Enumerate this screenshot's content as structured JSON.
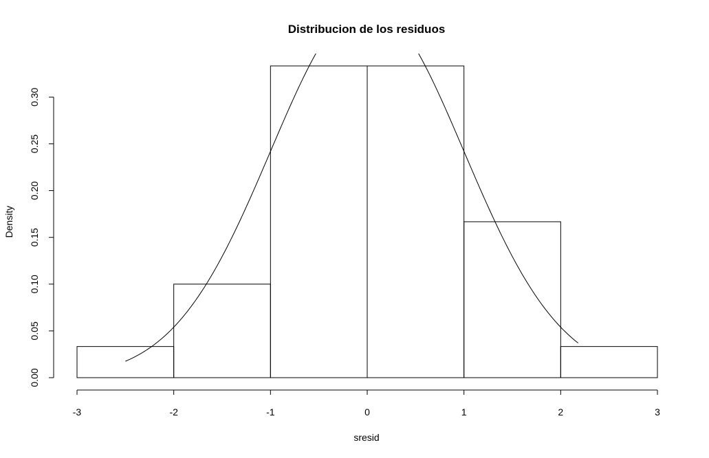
{
  "chart_data": {
    "type": "bar",
    "subtype": "histogram with normal density curve",
    "title": "Distribucion de los residuos",
    "xlabel": "sresid",
    "ylabel": "Density",
    "xlim": [
      -3,
      3
    ],
    "ylim": [
      0,
      0.3333
    ],
    "x_ticks": [
      "-3",
      "-2",
      "-1",
      "0",
      "1",
      "2",
      "3"
    ],
    "y_ticks": [
      "0.00",
      "0.05",
      "0.10",
      "0.15",
      "0.20",
      "0.25",
      "0.30"
    ],
    "bins": [
      {
        "start": -3,
        "end": -2,
        "density": 0.0333
      },
      {
        "start": -2,
        "end": -1,
        "density": 0.1
      },
      {
        "start": -1,
        "end": 0,
        "density": 0.3333
      },
      {
        "start": 0,
        "end": 1,
        "density": 0.3333
      },
      {
        "start": 1,
        "end": 2,
        "density": 0.1667
      },
      {
        "start": 2,
        "end": 3,
        "density": 0.0333
      }
    ],
    "curve": {
      "type": "normal density",
      "mean": 0,
      "sd": 1,
      "x_range": [
        -2.5,
        2.18
      ]
    },
    "grid": false,
    "legend": "none"
  }
}
